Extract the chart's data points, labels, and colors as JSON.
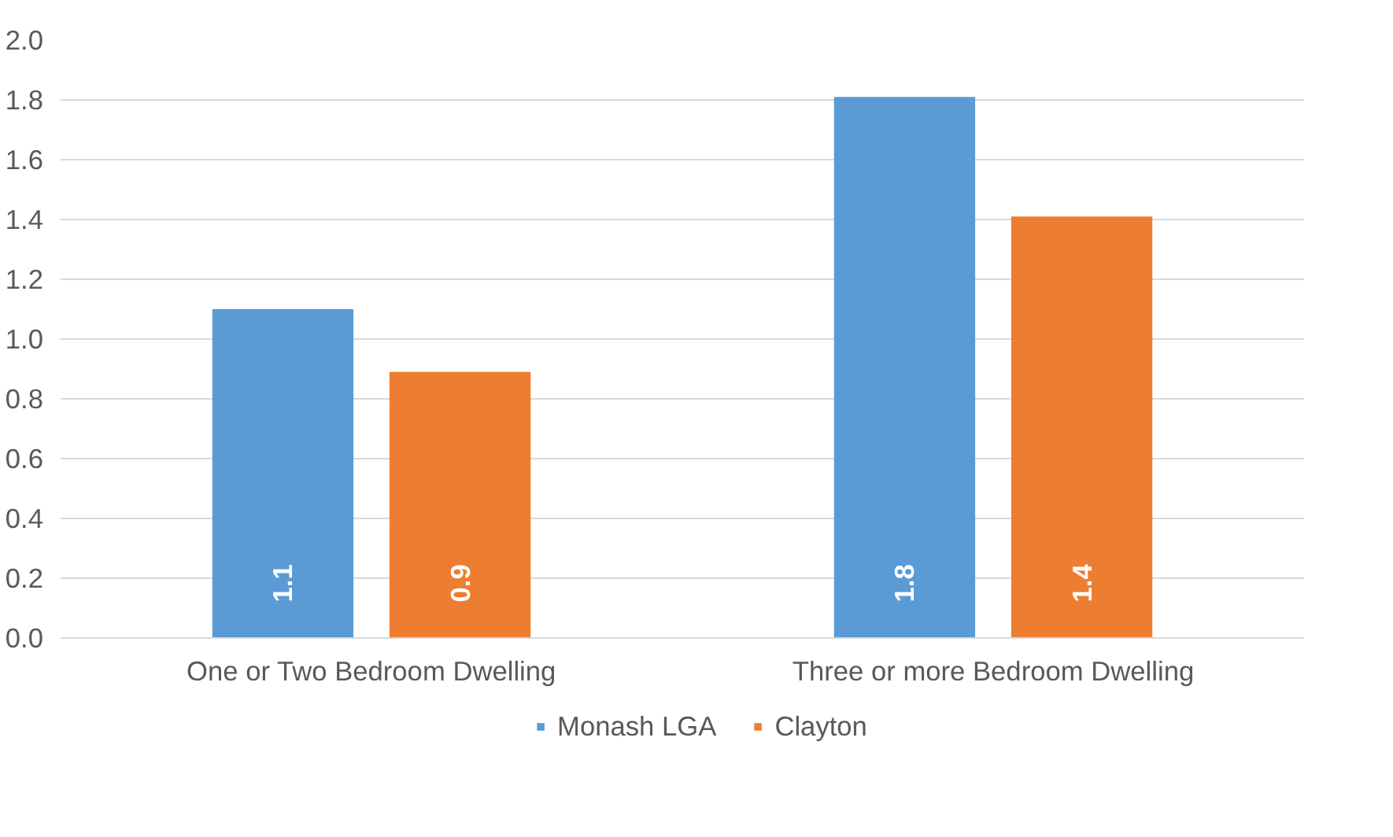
{
  "chart_data": {
    "type": "bar",
    "categories": [
      "One or Two Bedroom Dwelling",
      "Three or more Bedroom Dwelling"
    ],
    "series": [
      {
        "name": "Monash LGA",
        "color": "#5b9bd5",
        "values": [
          1.1,
          1.81
        ],
        "value_labels": [
          "1.1",
          "1.8"
        ]
      },
      {
        "name": "Clayton",
        "color": "#ed7d31",
        "values": [
          0.89,
          1.41
        ],
        "value_labels": [
          "0.9",
          "1.4"
        ]
      }
    ],
    "ylim": [
      0,
      2.0
    ],
    "yticks": [
      {
        "value": 0,
        "label": "0.0"
      },
      {
        "value": 0.2,
        "label": "0.2"
      },
      {
        "value": 0.4,
        "label": "0.4"
      },
      {
        "value": 0.6,
        "label": "0.6"
      },
      {
        "value": 0.8,
        "label": "0.8"
      },
      {
        "value": 1.0,
        "label": "1.0"
      },
      {
        "value": 1.2,
        "label": "1.2"
      },
      {
        "value": 1.4,
        "label": "1.4"
      },
      {
        "value": 1.6,
        "label": "1.6"
      },
      {
        "value": 1.8,
        "label": "1.8"
      },
      {
        "value": 2.0,
        "label": "2.0"
      }
    ],
    "grid": "y",
    "legend": "bottom"
  }
}
